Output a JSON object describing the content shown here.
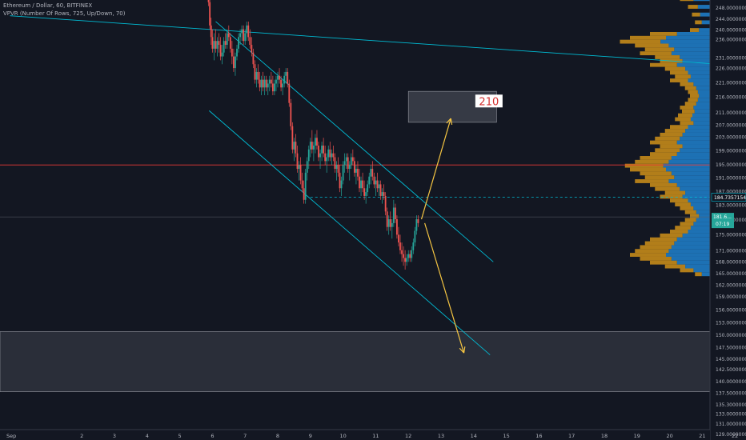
{
  "header": {
    "symbol_line": "Ethereum / Dollar, 60, BITFINEX",
    "indicator_line": "VPVR (Number Of Rows, 725, Up/Down, 70)"
  },
  "colors": {
    "background": "#131722",
    "up_candle": "#26a69a",
    "down_candle": "#ef5350",
    "channel": "#00bcd4",
    "arrow": "#f5c542",
    "resistance": "#e53935",
    "vp_up": "#1f7bc4",
    "vp_down": "#c48a19",
    "zone": "#2a2e39"
  },
  "chart_data": {
    "type": "candlestick",
    "y_axis": {
      "ticks": [
        "248.00000000",
        "244.00000000",
        "240.00000000",
        "236.00000000",
        "231.00000000",
        "226.00000000",
        "221.00000000",
        "216.00000000",
        "211.00000000",
        "207.00000000",
        "203.00000000",
        "199.00000000",
        "195.00000000",
        "191.00000000",
        "187.00000000",
        "183.00000000",
        "179.00000000",
        "175.00000000",
        "171.00000000",
        "168.00000000",
        "165.00000000",
        "162.00000000",
        "159.00000000",
        "156.00000000",
        "153.00000000",
        "150.00000000",
        "147.50000000",
        "145.00000000",
        "142.50000000",
        "140.00000000",
        "137.50000000",
        "135.30000000",
        "133.00000000",
        "131.00000000",
        "129.00000000"
      ],
      "current_label": "184.73571549",
      "price_label": "181.6...",
      "countdown": "07:19"
    },
    "x_axis": {
      "ticks": [
        "Sep",
        "2",
        "3",
        "4",
        "5",
        "6",
        "7",
        "8",
        "9",
        "10",
        "11",
        "12",
        "13",
        "14",
        "15",
        "16",
        "17",
        "18",
        "19",
        "20",
        "21",
        "22"
      ]
    },
    "candles": [
      [
        5.8,
        250,
        251,
        247,
        248
      ],
      [
        5.84,
        248,
        249,
        241,
        242
      ],
      [
        5.88,
        242,
        243,
        236,
        237
      ],
      [
        5.92,
        237,
        238,
        230,
        231
      ],
      [
        5.96,
        231,
        233,
        226,
        228
      ],
      [
        6.0,
        228,
        230,
        224,
        225
      ],
      [
        6.05,
        225,
        229,
        222,
        227
      ],
      [
        6.1,
        227,
        230,
        224,
        225
      ],
      [
        6.15,
        225,
        228,
        223,
        227
      ],
      [
        6.2,
        227,
        229,
        224,
        226
      ],
      [
        6.25,
        226,
        228,
        222,
        223
      ],
      [
        6.3,
        223,
        226,
        221,
        224
      ],
      [
        6.35,
        224,
        228,
        223,
        227
      ],
      [
        6.4,
        227,
        229,
        225,
        226
      ],
      [
        6.45,
        226,
        230,
        225,
        229
      ],
      [
        6.5,
        229,
        231,
        227,
        228
      ],
      [
        6.55,
        228,
        229,
        224,
        225
      ],
      [
        6.6,
        225,
        227,
        221,
        223
      ],
      [
        6.65,
        223,
        225,
        219,
        220
      ],
      [
        6.7,
        220,
        224,
        218,
        223
      ],
      [
        6.75,
        223,
        226,
        222,
        225
      ],
      [
        6.8,
        225,
        229,
        224,
        228
      ],
      [
        6.85,
        228,
        230,
        226,
        229
      ],
      [
        6.9,
        229,
        231,
        227,
        230
      ],
      [
        6.95,
        230,
        231,
        226,
        227
      ],
      [
        7.0,
        227,
        230,
        226,
        229
      ],
      [
        7.05,
        229,
        232,
        227,
        231
      ],
      [
        7.1,
        231,
        232,
        227,
        228
      ],
      [
        7.15,
        228,
        230,
        225,
        226
      ],
      [
        7.2,
        226,
        228,
        223,
        224
      ],
      [
        7.25,
        224,
        225,
        220,
        221
      ],
      [
        7.3,
        221,
        222,
        216,
        217
      ],
      [
        7.35,
        217,
        220,
        215,
        219
      ],
      [
        7.4,
        219,
        221,
        216,
        217
      ],
      [
        7.45,
        217,
        219,
        214,
        215
      ],
      [
        7.5,
        215,
        218,
        213,
        217
      ],
      [
        7.55,
        217,
        219,
        214,
        215
      ],
      [
        7.6,
        215,
        218,
        213,
        217
      ],
      [
        7.65,
        217,
        218,
        214,
        215
      ],
      [
        7.7,
        215,
        217,
        213,
        216
      ],
      [
        7.75,
        216,
        218,
        214,
        217
      ],
      [
        7.8,
        217,
        219,
        215,
        216
      ],
      [
        7.85,
        216,
        218,
        213,
        214
      ],
      [
        7.9,
        214,
        217,
        213,
        216
      ],
      [
        7.95,
        216,
        218,
        214,
        217
      ],
      [
        8.0,
        217,
        219,
        215,
        218
      ],
      [
        8.05,
        218,
        220,
        216,
        217
      ],
      [
        8.1,
        217,
        218,
        214,
        215
      ],
      [
        8.15,
        215,
        217,
        213,
        216
      ],
      [
        8.2,
        216,
        219,
        215,
        218
      ],
      [
        8.25,
        218,
        220,
        216,
        219
      ],
      [
        8.3,
        219,
        220,
        215,
        216
      ],
      [
        8.35,
        216,
        217,
        210,
        211
      ],
      [
        8.4,
        211,
        212,
        204,
        205
      ],
      [
        8.45,
        205,
        206,
        198,
        199
      ],
      [
        8.5,
        199,
        202,
        196,
        201
      ],
      [
        8.55,
        201,
        203,
        197,
        198
      ],
      [
        8.6,
        198,
        200,
        193,
        194
      ],
      [
        8.65,
        194,
        196,
        191,
        195
      ],
      [
        8.7,
        195,
        197,
        190,
        191
      ],
      [
        8.75,
        191,
        193,
        188,
        189
      ],
      [
        8.8,
        189,
        191,
        185,
        186
      ],
      [
        8.85,
        186,
        194,
        185,
        193
      ],
      [
        8.9,
        193,
        197,
        191,
        196
      ],
      [
        8.95,
        196,
        200,
        194,
        199
      ],
      [
        9.0,
        199,
        202,
        197,
        201
      ],
      [
        9.05,
        201,
        204,
        198,
        199
      ],
      [
        9.1,
        199,
        201,
        196,
        200
      ],
      [
        9.15,
        200,
        203,
        198,
        202
      ],
      [
        9.2,
        202,
        204,
        199,
        200
      ],
      [
        9.25,
        200,
        201,
        196,
        197
      ],
      [
        9.3,
        197,
        199,
        194,
        198
      ],
      [
        9.35,
        198,
        201,
        196,
        200
      ],
      [
        9.4,
        200,
        202,
        197,
        198
      ],
      [
        9.45,
        198,
        200,
        195,
        196
      ],
      [
        9.5,
        196,
        198,
        193,
        197
      ],
      [
        9.55,
        197,
        200,
        196,
        199
      ],
      [
        9.6,
        199,
        201,
        196,
        197
      ],
      [
        9.65,
        197,
        199,
        195,
        198
      ],
      [
        9.7,
        198,
        200,
        196,
        197
      ],
      [
        9.75,
        197,
        198,
        193,
        194
      ],
      [
        9.8,
        194,
        196,
        191,
        195
      ],
      [
        9.85,
        195,
        197,
        192,
        193
      ],
      [
        9.9,
        193,
        195,
        188,
        189
      ],
      [
        9.95,
        189,
        192,
        187,
        191
      ],
      [
        10.0,
        191,
        196,
        190,
        195
      ],
      [
        10.05,
        195,
        198,
        193,
        196
      ],
      [
        10.1,
        196,
        198,
        194,
        197
      ],
      [
        10.15,
        197,
        198,
        193,
        194
      ],
      [
        10.2,
        194,
        196,
        191,
        195
      ],
      [
        10.25,
        195,
        198,
        194,
        197
      ],
      [
        10.3,
        197,
        199,
        195,
        196
      ],
      [
        10.35,
        196,
        197,
        192,
        193
      ],
      [
        10.4,
        193,
        195,
        190,
        194
      ],
      [
        10.45,
        194,
        196,
        191,
        192
      ],
      [
        10.5,
        192,
        194,
        188,
        189
      ],
      [
        10.55,
        189,
        192,
        187,
        191
      ],
      [
        10.6,
        191,
        193,
        188,
        189
      ],
      [
        10.65,
        189,
        191,
        186,
        187
      ],
      [
        10.7,
        187,
        189,
        185,
        188
      ],
      [
        10.75,
        188,
        191,
        187,
        190
      ],
      [
        10.8,
        190,
        193,
        189,
        192
      ],
      [
        10.85,
        192,
        195,
        190,
        194
      ],
      [
        10.9,
        194,
        196,
        191,
        192
      ],
      [
        10.95,
        192,
        193,
        189,
        190
      ],
      [
        11.0,
        190,
        192,
        187,
        191
      ],
      [
        11.05,
        191,
        193,
        188,
        189
      ],
      [
        11.1,
        189,
        191,
        187,
        190
      ],
      [
        11.15,
        190,
        191,
        186,
        187
      ],
      [
        11.2,
        187,
        189,
        185,
        188
      ],
      [
        11.25,
        188,
        190,
        186,
        187
      ],
      [
        11.3,
        187,
        188,
        182,
        183
      ],
      [
        11.35,
        183,
        184,
        178,
        179
      ],
      [
        11.4,
        179,
        182,
        177,
        181
      ],
      [
        11.45,
        181,
        183,
        178,
        179
      ],
      [
        11.5,
        179,
        181,
        176,
        180
      ],
      [
        11.55,
        180,
        186,
        179,
        184
      ],
      [
        11.6,
        184,
        185,
        180,
        181
      ],
      [
        11.65,
        181,
        182,
        176,
        177
      ],
      [
        11.7,
        177,
        179,
        174,
        175
      ],
      [
        11.75,
        175,
        177,
        172,
        173
      ],
      [
        11.8,
        173,
        175,
        170,
        172
      ],
      [
        11.85,
        172,
        174,
        169,
        171
      ],
      [
        11.9,
        171,
        173,
        168,
        170
      ],
      [
        11.95,
        170,
        172,
        169,
        171
      ],
      [
        12.0,
        171,
        173,
        170,
        172
      ],
      [
        12.05,
        172,
        173,
        170,
        171
      ],
      [
        12.1,
        171,
        174,
        170,
        173
      ],
      [
        12.15,
        173,
        176,
        172,
        175
      ],
      [
        12.2,
        175,
        179,
        174,
        178
      ],
      [
        12.25,
        178,
        182,
        177,
        181
      ],
      [
        12.3,
        181,
        182,
        179,
        180
      ]
    ],
    "channel": {
      "upper": [
        [
          6.1,
          232
        ],
        [
          14.6,
          170
        ]
      ],
      "lower": [
        [
          5.9,
          209
        ],
        [
          14.5,
          146
        ]
      ],
      "long_trendline": [
        [
          -0.2,
          233.5
        ],
        [
          21.5,
          221
        ]
      ]
    },
    "resistance_price": 195,
    "dashed_price": 186.7,
    "current_price": 181.6,
    "projection_up": {
      "from": [
        12.4,
        181
      ],
      "to": [
        13.3,
        207
      ],
      "target_label": "210"
    },
    "projection_down": {
      "from": [
        12.5,
        180
      ],
      "to": [
        13.7,
        146.5
      ]
    },
    "target_box": {
      "x0": 12.0,
      "x1": 14.7,
      "y0": 206,
      "y1": 214
    },
    "support_zone": {
      "y0": 136.5,
      "y1": 152
    },
    "volume_profile": [
      [
        248,
        0.05
      ],
      [
        246,
        0.08
      ],
      [
        244,
        0.15
      ],
      [
        242,
        0.25
      ],
      [
        240,
        0.35
      ],
      [
        238,
        0.3
      ],
      [
        236,
        0.22
      ],
      [
        234,
        0.18
      ],
      [
        232,
        0.15
      ],
      [
        230,
        0.2
      ],
      [
        229,
        0.6
      ],
      [
        228,
        0.8
      ],
      [
        227,
        0.9
      ],
      [
        226,
        0.75
      ],
      [
        225,
        0.65
      ],
      [
        224,
        0.7
      ],
      [
        223,
        0.55
      ],
      [
        222,
        0.5
      ],
      [
        221,
        0.6
      ],
      [
        220,
        0.45
      ],
      [
        219,
        0.4
      ],
      [
        218,
        0.35
      ],
      [
        217,
        0.4
      ],
      [
        216,
        0.3
      ],
      [
        215,
        0.25
      ],
      [
        214,
        0.22
      ],
      [
        213,
        0.2
      ],
      [
        212,
        0.22
      ],
      [
        211,
        0.25
      ],
      [
        210,
        0.3
      ],
      [
        209,
        0.28
      ],
      [
        208,
        0.32
      ],
      [
        207,
        0.35
      ],
      [
        206,
        0.3
      ],
      [
        205,
        0.4
      ],
      [
        204,
        0.45
      ],
      [
        203,
        0.5
      ],
      [
        202,
        0.55
      ],
      [
        201,
        0.6
      ],
      [
        200,
        0.5
      ],
      [
        199,
        0.55
      ],
      [
        198,
        0.6
      ],
      [
        197,
        0.7
      ],
      [
        196,
        0.75
      ],
      [
        195,
        0.85
      ],
      [
        194,
        0.8
      ],
      [
        193,
        0.7
      ],
      [
        192,
        0.65
      ],
      [
        191,
        0.75
      ],
      [
        190,
        0.6
      ],
      [
        189,
        0.55
      ],
      [
        188,
        0.45
      ],
      [
        187,
        0.5
      ],
      [
        186,
        0.4
      ],
      [
        185,
        0.35
      ],
      [
        184,
        0.3
      ],
      [
        183,
        0.25
      ],
      [
        182,
        0.2
      ],
      [
        181,
        0.25
      ],
      [
        180,
        0.3
      ],
      [
        179,
        0.35
      ],
      [
        178,
        0.4
      ],
      [
        177,
        0.5
      ],
      [
        176,
        0.6
      ],
      [
        175,
        0.65
      ],
      [
        174,
        0.7
      ],
      [
        173,
        0.75
      ],
      [
        172,
        0.8
      ],
      [
        171,
        0.7
      ],
      [
        170,
        0.6
      ],
      [
        169,
        0.45
      ],
      [
        168,
        0.3
      ],
      [
        167,
        0.15
      ]
    ]
  }
}
